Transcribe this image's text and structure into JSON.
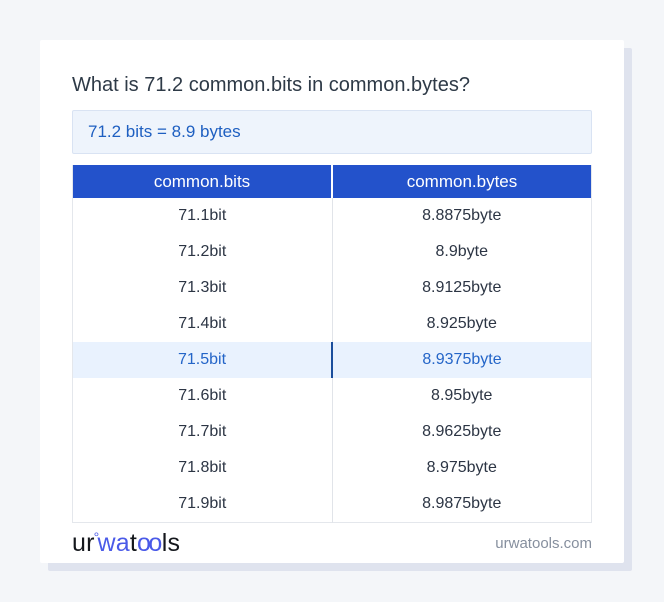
{
  "page": {
    "title": "What is 71.2 common.bits in common.bytes?",
    "result_text": "71.2 bits = 8.9 bytes"
  },
  "table": {
    "headers": [
      "common.bits",
      "common.bytes"
    ],
    "rows": [
      {
        "bits": "71.1bit",
        "bytes": "8.8875byte",
        "highlight": false
      },
      {
        "bits": "71.2bit",
        "bytes": "8.9byte",
        "highlight": false
      },
      {
        "bits": "71.3bit",
        "bytes": "8.9125byte",
        "highlight": false
      },
      {
        "bits": "71.4bit",
        "bytes": "8.925byte",
        "highlight": false
      },
      {
        "bits": "71.5bit",
        "bytes": "8.9375byte",
        "highlight": true
      },
      {
        "bits": "71.6bit",
        "bytes": "8.95byte",
        "highlight": false
      },
      {
        "bits": "71.7bit",
        "bytes": "8.9625byte",
        "highlight": false
      },
      {
        "bits": "71.8bit",
        "bytes": "8.975byte",
        "highlight": false
      },
      {
        "bits": "71.9bit",
        "bytes": "8.9875byte",
        "highlight": false
      }
    ]
  },
  "footer": {
    "logo": {
      "ur": "ur",
      "degree": "°",
      "wa": "wa",
      "t": "t",
      "oo": "oo",
      "ls": "ls"
    },
    "site": "urwatools.com"
  },
  "colors": {
    "page_background": "#f4f6f9",
    "card_background": "#ffffff",
    "header_blue": "#2352cb",
    "result_box_background": "#eef4fc",
    "result_text_blue": "#1e5fc1",
    "highlight_row_background": "#e9f2fe",
    "highlight_text_blue": "#2465c8",
    "highlight_divider_blue": "#1b4e9c",
    "body_text": "#2c3544",
    "logo_blue": "#4a5ae8",
    "site_text_gray": "#868f9e"
  }
}
